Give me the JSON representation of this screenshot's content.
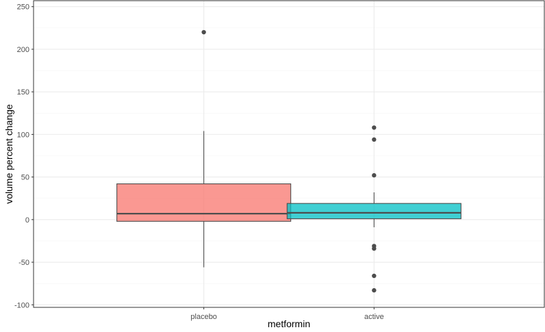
{
  "chart_data": {
    "type": "boxplot",
    "xlabel": "metformin",
    "ylabel": "volume percent change",
    "ylim": [
      -100,
      250
    ],
    "yticks": [
      -100,
      -50,
      0,
      50,
      100,
      150,
      200,
      250
    ],
    "categories": [
      "placebo",
      "active"
    ],
    "grid": true,
    "legend": "none",
    "boxes": [
      {
        "category": "placebo",
        "color": "#F8766D",
        "whisker_low": -56,
        "q1": -2,
        "median": 7,
        "q3": 42,
        "whisker_high": 104,
        "outliers": [
          220
        ]
      },
      {
        "category": "active",
        "color": "#00BFC4",
        "whisker_low": -9,
        "q1": 1,
        "median": 8,
        "q3": 19,
        "whisker_high": 32,
        "outliers": [
          108,
          94,
          52,
          -31,
          -34,
          -66,
          -83
        ]
      }
    ]
  },
  "colors": {
    "panel_border": "#333333",
    "grid_major": "#ebebeb",
    "grid_minor": "#f5f5f5",
    "box_stroke": "#4d4d4d",
    "outlier": "#4d4d4d"
  }
}
